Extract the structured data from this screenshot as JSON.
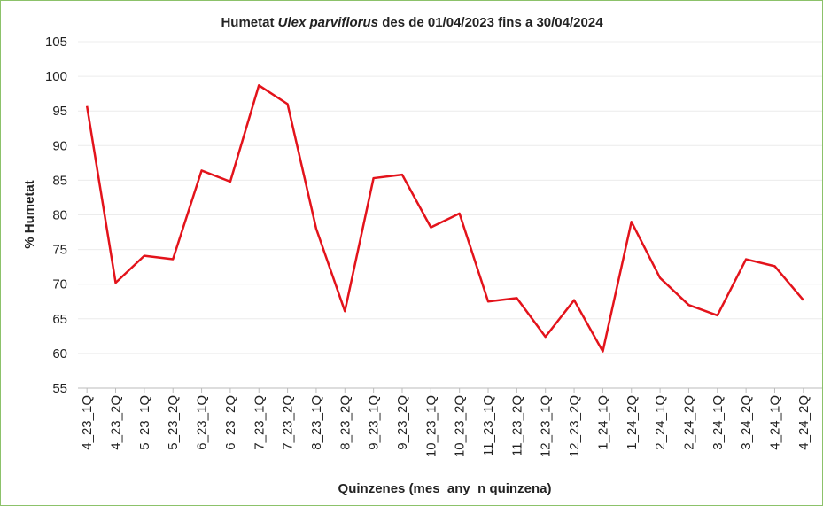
{
  "chart_data": {
    "type": "line",
    "title": [
      "Humetat",
      "Ulex parviflorus",
      "des de 01/04/2023 fins a 30/04/2024"
    ],
    "xlabel": "Quinzenes (mes_any_n quinzena)",
    "ylabel": "% Humetat",
    "categories": [
      "4_23_1Q",
      "4_23_2Q",
      "5_23_1Q",
      "5_23_2Q",
      "6_23_1Q",
      "6_23_2Q",
      "7_23_1Q",
      "7_23_2Q",
      "8_23_1Q",
      "8_23_2Q",
      "9_23_1Q",
      "9_23_2Q",
      "10_23_1Q",
      "10_23_2Q",
      "11_23_1Q",
      "11_23_2Q",
      "12_23_1Q",
      "12_23_2Q",
      "1_24_1Q",
      "1_24_2Q",
      "2_24_1Q",
      "2_24_2Q",
      "3_24_1Q",
      "3_24_2Q",
      "4_24_1Q",
      "4_24_2Q"
    ],
    "series": [
      {
        "color": "#e3131b",
        "values": [
          95.7,
          70.2,
          74.1,
          73.6,
          86.4,
          84.8,
          98.7,
          96.0,
          78.0,
          66.1,
          85.3,
          85.8,
          78.2,
          80.2,
          67.5,
          68.0,
          62.4,
          67.7,
          60.3,
          79.0,
          70.9,
          67.0,
          65.5,
          73.6,
          72.6,
          67.7
        ]
      }
    ],
    "ylim": [
      55,
      105
    ],
    "yticks": [
      55,
      60,
      65,
      70,
      75,
      80,
      85,
      90,
      95,
      100,
      105
    ],
    "grid": true
  }
}
